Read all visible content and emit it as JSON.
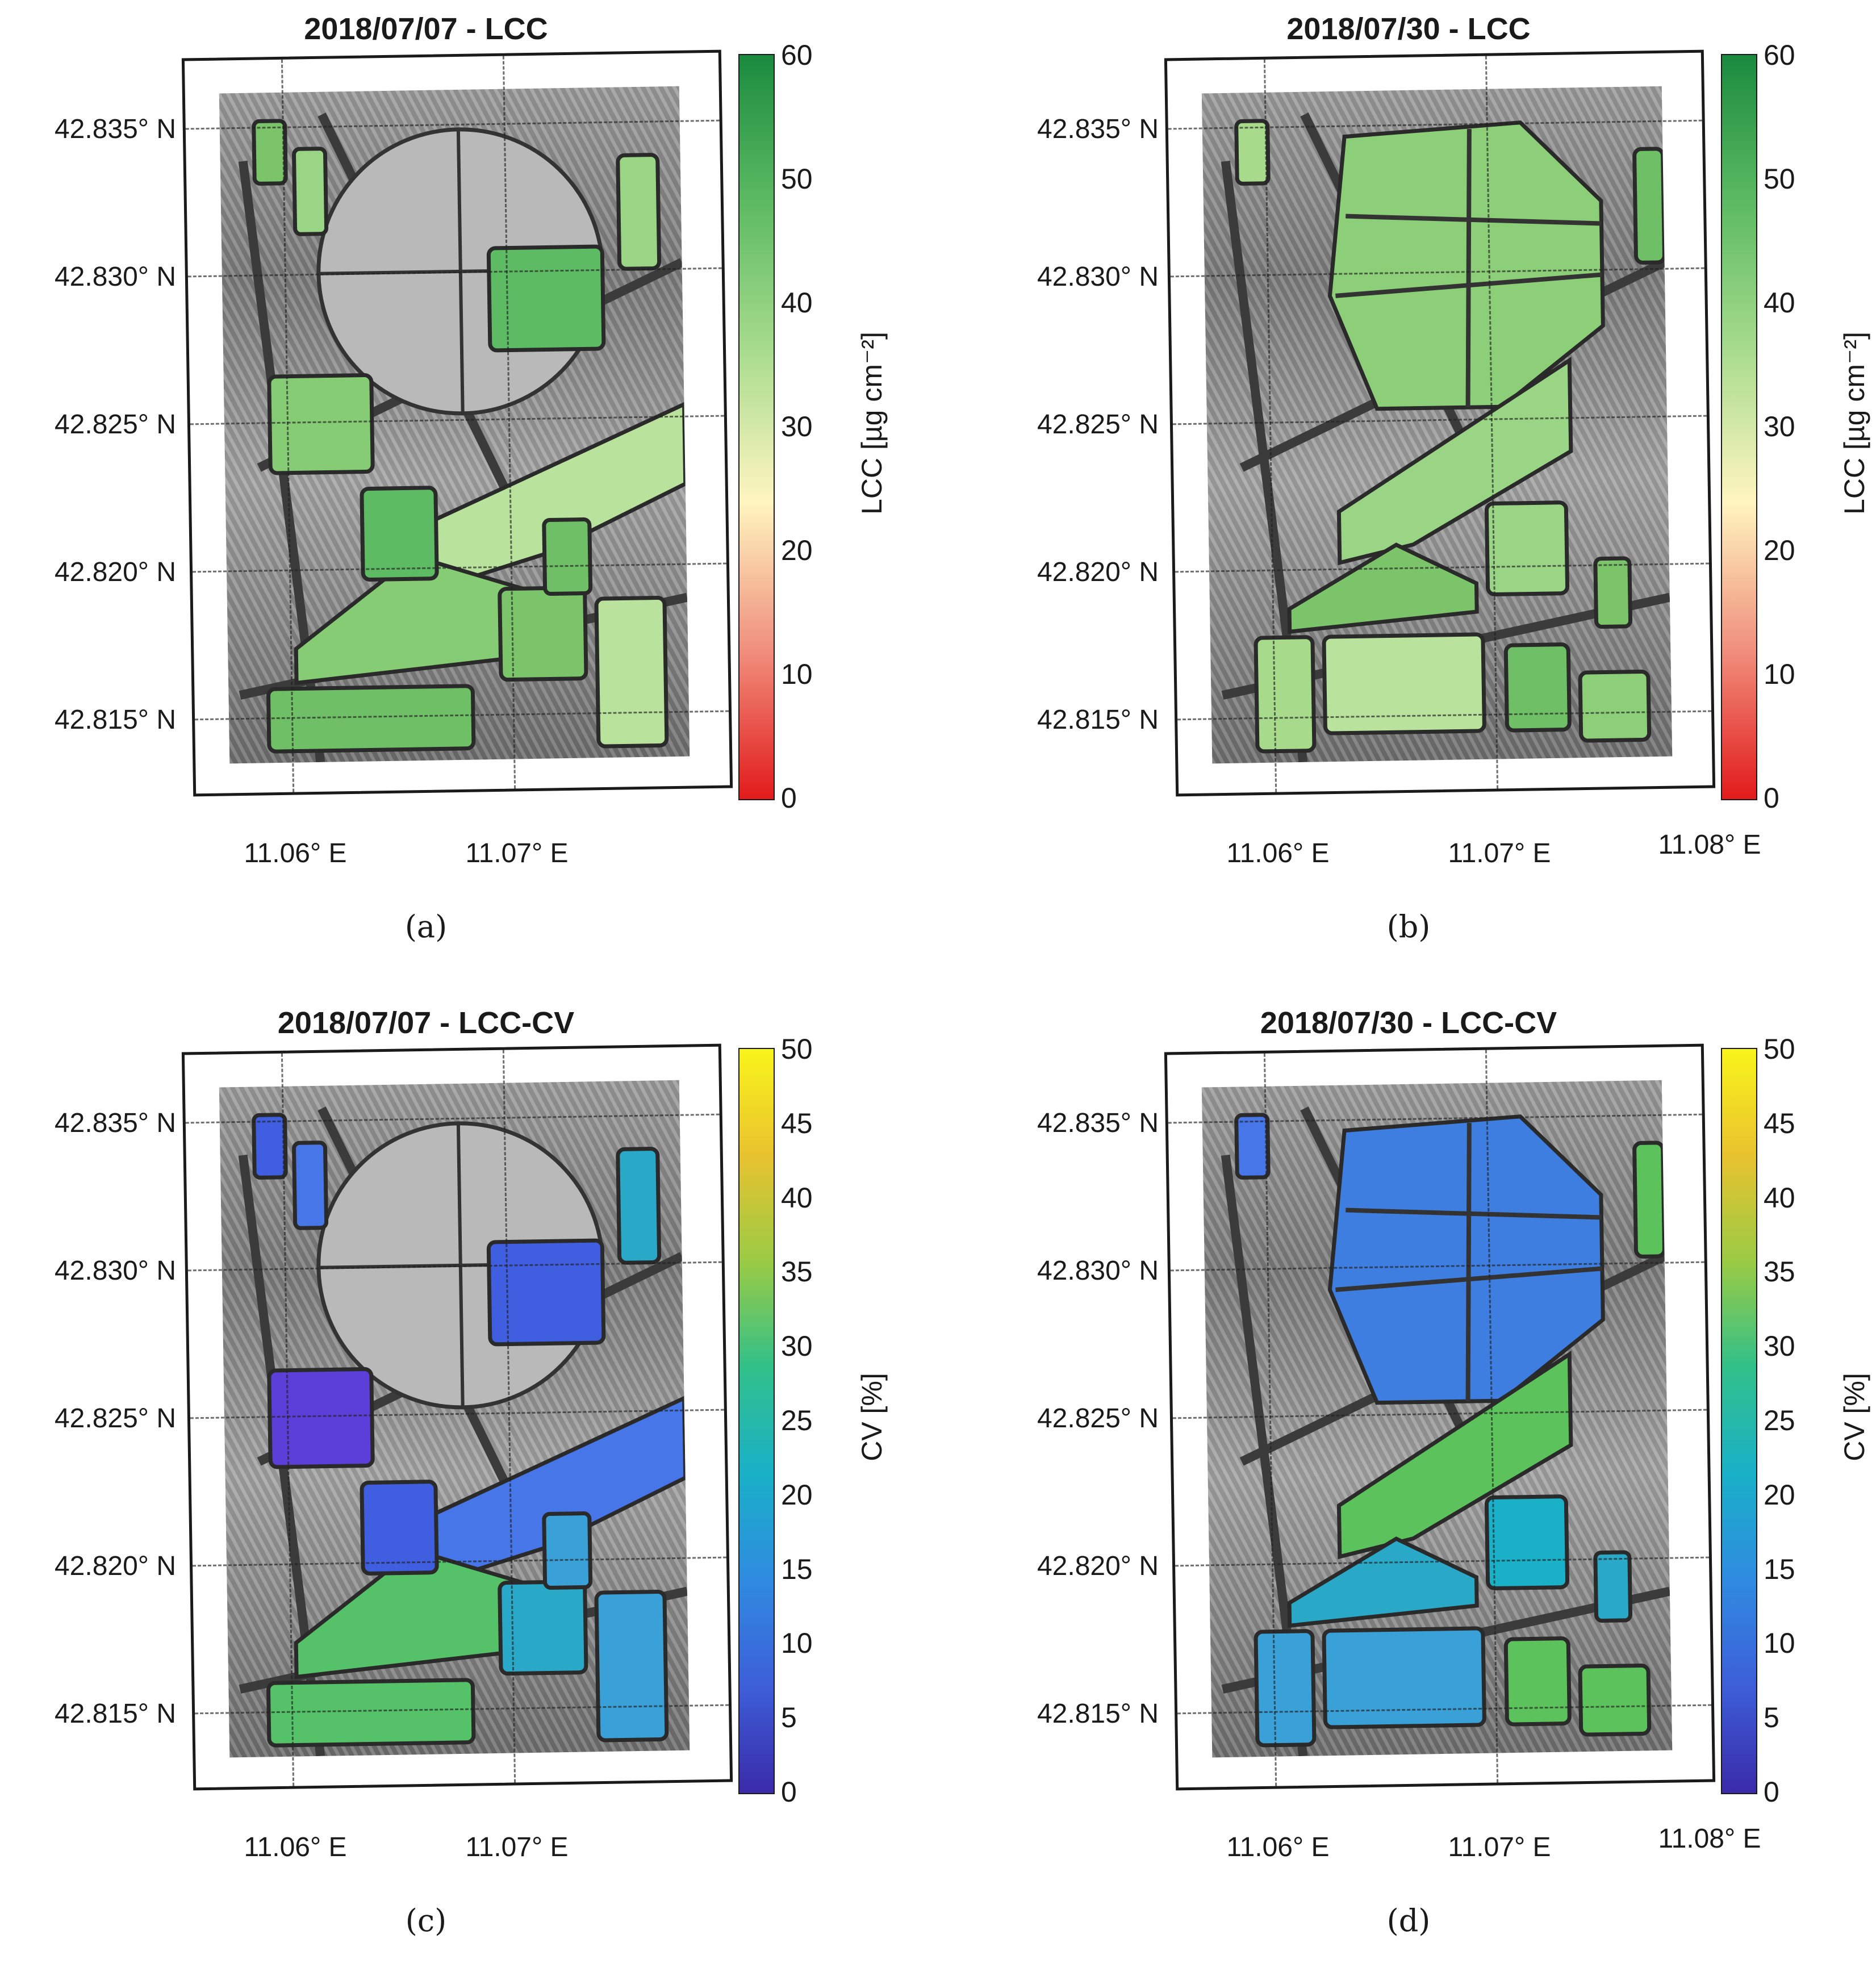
{
  "panels": [
    {
      "id": "a",
      "title": "2018/07/07 - LCC",
      "caption": "(a)",
      "lat_labels": [
        "42.835° N",
        "42.830° N",
        "42.825° N",
        "42.820° N",
        "42.815° N"
      ],
      "lon_labels": [
        "11.06° E",
        "11.07° E"
      ],
      "colorbar": {
        "label": "LCC [µg cm⁻²]",
        "ticks": [
          "60",
          "50",
          "40",
          "30",
          "20",
          "10",
          "0"
        ],
        "colors": [
          "#e11b1b",
          "#f08f7c",
          "#fff5c0",
          "#a9dc8e",
          "#5dbb63",
          "#1a8a3e"
        ]
      },
      "field_colors": [
        "#7cc46a",
        "#9ad485",
        "#5dbb63",
        "#b9e29c",
        "#86cc74",
        "#6fbf66"
      ]
    },
    {
      "id": "b",
      "title": "2018/07/30 - LCC",
      "caption": "(b)",
      "lat_labels": [
        "42.835° N",
        "42.830° N",
        "42.825° N",
        "42.820° N",
        "42.815° N"
      ],
      "lon_labels": [
        "11.06° E",
        "11.07° E",
        "11.08° E"
      ],
      "colorbar": {
        "label": "LCC [µg cm⁻²]",
        "ticks": [
          "60",
          "50",
          "40",
          "30",
          "20",
          "10",
          "0"
        ],
        "colors": [
          "#e11b1b",
          "#f08f7c",
          "#fff5c0",
          "#a9dc8e",
          "#5dbb63",
          "#1a8a3e"
        ]
      },
      "field_colors": [
        "#8ccf78",
        "#a8da8c",
        "#6fbf66",
        "#9ad485",
        "#7cc46a",
        "#b9e29c"
      ]
    },
    {
      "id": "c",
      "title": "2018/07/07 - LCC-CV",
      "caption": "(c)",
      "lat_labels": [
        "42.835° N",
        "42.830° N",
        "42.825° N",
        "42.820° N",
        "42.815° N"
      ],
      "lon_labels": [
        "11.06° E",
        "11.07° E"
      ],
      "colorbar": {
        "label": "CV [%]",
        "ticks": [
          "50",
          "45",
          "40",
          "35",
          "30",
          "25",
          "20",
          "15",
          "10",
          "5",
          "0"
        ],
        "colors": [
          "#3a2aa8",
          "#3d5ed8",
          "#2f8be0",
          "#19b0c8",
          "#31c08a",
          "#9acb44",
          "#e9c22f",
          "#f8f41a"
        ]
      },
      "field_colors": [
        "#3f5ee0",
        "#4676e8",
        "#2aa8c8",
        "#55c26a",
        "#3aa0d8",
        "#5b3fd8"
      ]
    },
    {
      "id": "d",
      "title": "2018/07/30 - LCC-CV",
      "caption": "(d)",
      "lat_labels": [
        "42.835° N",
        "42.830° N",
        "42.825° N",
        "42.820° N",
        "42.815° N"
      ],
      "lon_labels": [
        "11.06° E",
        "11.07° E",
        "11.08° E"
      ],
      "colorbar": {
        "label": "CV [%]",
        "ticks": [
          "50",
          "45",
          "40",
          "35",
          "30",
          "25",
          "20",
          "15",
          "10",
          "5",
          "0"
        ],
        "colors": [
          "#3a2aa8",
          "#3d5ed8",
          "#2f8be0",
          "#19b0c8",
          "#31c08a",
          "#9acb44",
          "#e9c22f",
          "#f8f41a"
        ]
      },
      "field_colors": [
        "#3d7ee0",
        "#2aa8c8",
        "#5cc35c",
        "#4676e8",
        "#19b0c8",
        "#3aa0d8"
      ]
    }
  ]
}
